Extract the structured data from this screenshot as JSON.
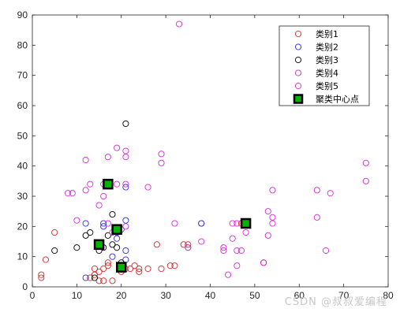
{
  "chart_data": {
    "type": "scatter",
    "title": "",
    "xlabel": "",
    "ylabel": "",
    "xlim": [
      0,
      80
    ],
    "ylim": [
      0,
      90
    ],
    "xticks": [
      0,
      10,
      20,
      30,
      40,
      50,
      60,
      70,
      80
    ],
    "yticks": [
      0,
      10,
      20,
      30,
      40,
      50,
      60,
      70,
      80,
      90
    ],
    "grid": false,
    "legend_position": "top-right",
    "series": [
      {
        "name": "类别1",
        "marker": "open-circle",
        "color": "#d62a2a",
        "points": [
          [
            2,
            3
          ],
          [
            2,
            4
          ],
          [
            3,
            9
          ],
          [
            5,
            18
          ],
          [
            13,
            3
          ],
          [
            14,
            4
          ],
          [
            14,
            6
          ],
          [
            15,
            2
          ],
          [
            15,
            5
          ],
          [
            16,
            2
          ],
          [
            16,
            6
          ],
          [
            17,
            7
          ],
          [
            17,
            8
          ],
          [
            18,
            2
          ],
          [
            20,
            5
          ],
          [
            21,
            6
          ],
          [
            22,
            6
          ],
          [
            23,
            7
          ],
          [
            24,
            5
          ],
          [
            24,
            6
          ],
          [
            26,
            6
          ],
          [
            28,
            14
          ],
          [
            29,
            6
          ],
          [
            31,
            7
          ],
          [
            32,
            7
          ],
          [
            34,
            14
          ],
          [
            35,
            14
          ],
          [
            35,
            13
          ],
          [
            52,
            8
          ],
          [
            38,
            21
          ],
          [
            47,
            21
          ]
        ]
      },
      {
        "name": "类别2",
        "marker": "open-circle",
        "color": "#2a2ad6",
        "points": [
          [
            12,
            3
          ],
          [
            12,
            21
          ],
          [
            16,
            20
          ],
          [
            16,
            21
          ],
          [
            18,
            10
          ],
          [
            19,
            16
          ],
          [
            19,
            18
          ],
          [
            20,
            19
          ],
          [
            21,
            12
          ],
          [
            21,
            22
          ],
          [
            21,
            9
          ],
          [
            21,
            33
          ],
          [
            38,
            21
          ]
        ]
      },
      {
        "name": "类别3",
        "marker": "open-circle",
        "color": "#000000",
        "points": [
          [
            5,
            12
          ],
          [
            10,
            13
          ],
          [
            12,
            17
          ],
          [
            13,
            18
          ],
          [
            14,
            3
          ],
          [
            15,
            12
          ],
          [
            15,
            14
          ],
          [
            16,
            13
          ],
          [
            17,
            17
          ],
          [
            18,
            24
          ],
          [
            18,
            14
          ],
          [
            19,
            13
          ],
          [
            20,
            8
          ],
          [
            21,
            54
          ]
        ]
      },
      {
        "name": "类别4",
        "marker": "open-circle",
        "color": "#d62ad6",
        "points": [
          [
            33,
            87
          ],
          [
            43,
            12
          ],
          [
            43,
            13
          ],
          [
            44,
            4
          ],
          [
            45,
            21
          ],
          [
            45,
            16
          ],
          [
            46,
            12
          ],
          [
            46,
            7
          ],
          [
            46,
            21
          ],
          [
            47,
            12
          ],
          [
            48,
            18
          ],
          [
            48,
            21
          ],
          [
            52,
            8
          ],
          [
            53,
            25
          ],
          [
            53,
            17
          ],
          [
            54,
            23
          ],
          [
            54,
            21
          ],
          [
            54,
            32
          ],
          [
            64,
            32
          ],
          [
            64,
            23
          ],
          [
            66,
            12
          ],
          [
            67,
            31
          ],
          [
            75,
            41
          ],
          [
            75,
            35
          ]
        ]
      },
      {
        "name": "类别5",
        "marker": "open-circle",
        "color": "#d62ad6",
        "points": [
          [
            8,
            31
          ],
          [
            9,
            31
          ],
          [
            10,
            22
          ],
          [
            12,
            42
          ],
          [
            12,
            32
          ],
          [
            13,
            34
          ],
          [
            15,
            27
          ],
          [
            16,
            30
          ],
          [
            16,
            34
          ],
          [
            17,
            43
          ],
          [
            17,
            21
          ],
          [
            18,
            18
          ],
          [
            19,
            46
          ],
          [
            19,
            34
          ],
          [
            21,
            45
          ],
          [
            21,
            43
          ],
          [
            21,
            34
          ],
          [
            21,
            20
          ],
          [
            26,
            33
          ],
          [
            29,
            44
          ],
          [
            29,
            41
          ],
          [
            32,
            21
          ],
          [
            38,
            15
          ],
          [
            35,
            13
          ]
        ]
      },
      {
        "name": "聚类中心点",
        "marker": "filled-square",
        "color": "#00b400",
        "edge_color": "#000000",
        "points": [
          [
            17,
            34
          ],
          [
            15,
            14
          ],
          [
            19,
            19
          ],
          [
            20,
            6.5
          ],
          [
            48,
            21
          ]
        ]
      }
    ]
  },
  "watermark": "CSDN @叔叔爱编程"
}
